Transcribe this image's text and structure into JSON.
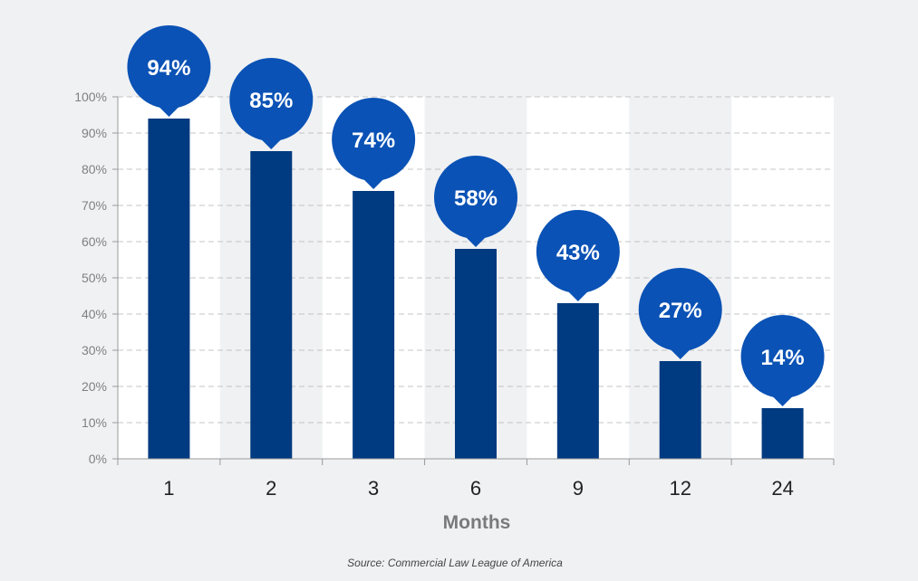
{
  "chart_data": {
    "type": "bar",
    "categories": [
      "1",
      "2",
      "3",
      "6",
      "9",
      "12",
      "24"
    ],
    "values": [
      94,
      85,
      74,
      58,
      43,
      27,
      14
    ],
    "value_labels": [
      "94%",
      "85%",
      "74%",
      "58%",
      "43%",
      "27%",
      "14%"
    ],
    "xlabel": "Months",
    "ylabel": "",
    "ylim": [
      0,
      100
    ],
    "yticks": [
      {
        "value": 0,
        "label": "0%"
      },
      {
        "value": 10,
        "label": "10%"
      },
      {
        "value": 20,
        "label": "20%"
      },
      {
        "value": 30,
        "label": "30%"
      },
      {
        "value": 40,
        "label": "40%"
      },
      {
        "value": 50,
        "label": "50%"
      },
      {
        "value": 60,
        "label": "60%"
      },
      {
        "value": 70,
        "label": "70%"
      },
      {
        "value": 80,
        "label": "80%"
      },
      {
        "value": 90,
        "label": "90%"
      },
      {
        "value": 100,
        "label": "100%"
      }
    ],
    "grid": true,
    "source": "Source: Commercial Law League of America"
  },
  "colors": {
    "background": "#f0f1f3",
    "band": "#ffffff",
    "bar": "#003a80",
    "bubble": "#0a52b5",
    "grid": "#c4c4c4",
    "axis": "#9a9a9a",
    "axis_title": "#7a7a7a",
    "source_text": "#444444"
  }
}
